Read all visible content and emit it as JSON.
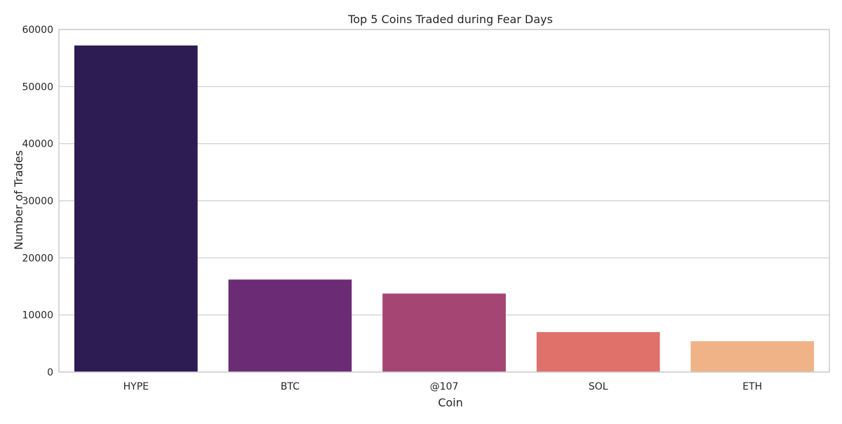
{
  "chart_data": {
    "type": "bar",
    "title": "Top 5 Coins Traded during Fear Days",
    "xlabel": "Coin",
    "ylabel": "Number of Trades",
    "categories": [
      "HYPE",
      "BTC",
      "@107",
      "SOL",
      "ETH"
    ],
    "values": [
      57200,
      16200,
      13750,
      7000,
      5400
    ],
    "ylim": [
      0,
      60000
    ],
    "yticks": [
      0,
      10000,
      20000,
      30000,
      40000,
      50000,
      60000
    ],
    "ytick_labels": [
      "0",
      "10000",
      "20000",
      "30000",
      "40000",
      "50000",
      "60000"
    ],
    "grid": "horizontal",
    "colors": [
      "#2d1b54",
      "#6b2b75",
      "#a54574",
      "#e0706a",
      "#efb387"
    ]
  },
  "style": {
    "grid_color": "#cccccc",
    "frame_color": "#cccccc",
    "text_color": "#262626"
  }
}
